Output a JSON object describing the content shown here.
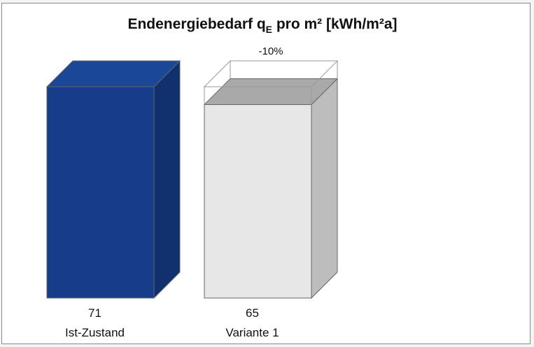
{
  "chart_data": {
    "type": "bar",
    "title": "Endenergiebedarf q",
    "title_sub": "E",
    "title_rest": " pro m² [kWh/m²a]",
    "categories": [
      "Ist-Zustand",
      "Variante 1"
    ],
    "values": [
      71,
      65
    ],
    "value_labels": [
      "71",
      "65"
    ],
    "reference_value": 71,
    "annotation": "-10%",
    "ylim": [
      0,
      71
    ],
    "grid": false,
    "legend": "none",
    "colors": {
      "bar1_front": "#173d8a",
      "bar1_top": "#1b4799",
      "bar1_side": "#10306e",
      "bar2_front": "#e7e7e7",
      "bar2_top": "#a9a9a9",
      "bar2_side": "#bdbdbd",
      "outline": "#666666"
    }
  }
}
